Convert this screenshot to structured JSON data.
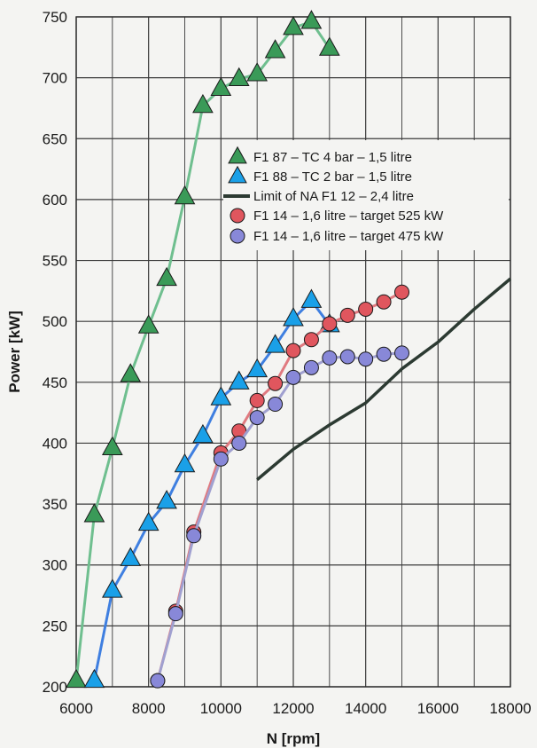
{
  "chart_data": {
    "type": "line",
    "xlabel": "N [rpm]",
    "ylabel": "Power [kW]",
    "xlim": [
      6000,
      18000
    ],
    "ylim": [
      200,
      750
    ],
    "xticks": [
      "6000",
      "8000",
      "10000",
      "12000",
      "14000",
      "16000",
      "18000"
    ],
    "yticks": [
      "200",
      "250",
      "300",
      "350",
      "400",
      "450",
      "500",
      "550",
      "600",
      "650",
      "700",
      "750"
    ],
    "x_gridlines_every": 1000,
    "y_gridlines_every": 50,
    "grid": true,
    "legend_position": "center-right",
    "series": [
      {
        "name": "F1 87 – TC 4 bar – 1,5 litre",
        "color": "#6fbf8f",
        "marker": "triangle",
        "marker_color": "#3a9a58",
        "points": [
          [
            6000,
            205
          ],
          [
            6500,
            341
          ],
          [
            7000,
            396
          ],
          [
            7500,
            456
          ],
          [
            8000,
            496
          ],
          [
            8500,
            535
          ],
          [
            9000,
            602
          ],
          [
            9500,
            677
          ],
          [
            10000,
            691
          ],
          [
            10500,
            699
          ],
          [
            11000,
            703
          ],
          [
            11500,
            722
          ],
          [
            12000,
            741
          ],
          [
            12500,
            746
          ],
          [
            13000,
            724
          ]
        ]
      },
      {
        "name": "F1 88 – TC 2 bar – 1,5 litre",
        "color": "#3f7fe0",
        "marker": "triangle",
        "marker_color": "#1aa0e8",
        "points": [
          [
            6500,
            205
          ],
          [
            7000,
            279
          ],
          [
            7500,
            305
          ],
          [
            8000,
            334
          ],
          [
            8500,
            352
          ],
          [
            9000,
            382
          ],
          [
            9500,
            406
          ],
          [
            10000,
            437
          ],
          [
            10500,
            450
          ],
          [
            11000,
            460
          ],
          [
            11500,
            480
          ],
          [
            12000,
            502
          ],
          [
            12500,
            517
          ],
          [
            13000,
            497
          ]
        ]
      },
      {
        "name": "Limit of NA F1 12 – 2,4 litre",
        "color": "#2c3a32",
        "marker": "none",
        "points": [
          [
            11000,
            370
          ],
          [
            12000,
            395
          ],
          [
            13000,
            415
          ],
          [
            14000,
            433
          ],
          [
            15000,
            461
          ],
          [
            16000,
            483
          ],
          [
            17000,
            510
          ],
          [
            18000,
            535
          ]
        ]
      },
      {
        "name": "F1 14 – 1,6 litre – target 525 kW",
        "color": "#e07a80",
        "marker": "circle",
        "marker_color": "#e0565e",
        "points": [
          [
            8250,
            205
          ],
          [
            8750,
            262
          ],
          [
            9250,
            327
          ],
          [
            10000,
            392
          ],
          [
            10500,
            410
          ],
          [
            11000,
            435
          ],
          [
            11500,
            449
          ],
          [
            12000,
            476
          ],
          [
            12500,
            485
          ],
          [
            13000,
            498
          ],
          [
            13500,
            505
          ],
          [
            14000,
            510
          ],
          [
            14500,
            516
          ],
          [
            15000,
            524
          ]
        ]
      },
      {
        "name": "F1 14 – 1,6 litre – target 475 kW",
        "color": "#a0a0d0",
        "marker": "circle",
        "marker_color": "#8888d8",
        "points": [
          [
            8250,
            205
          ],
          [
            8750,
            260
          ],
          [
            9250,
            324
          ],
          [
            10000,
            387
          ],
          [
            10500,
            400
          ],
          [
            11000,
            421
          ],
          [
            11500,
            432
          ],
          [
            12000,
            454
          ],
          [
            12500,
            462
          ],
          [
            13000,
            470
          ],
          [
            13500,
            471
          ],
          [
            14000,
            469
          ],
          [
            14500,
            473
          ],
          [
            15000,
            474
          ]
        ]
      }
    ]
  }
}
